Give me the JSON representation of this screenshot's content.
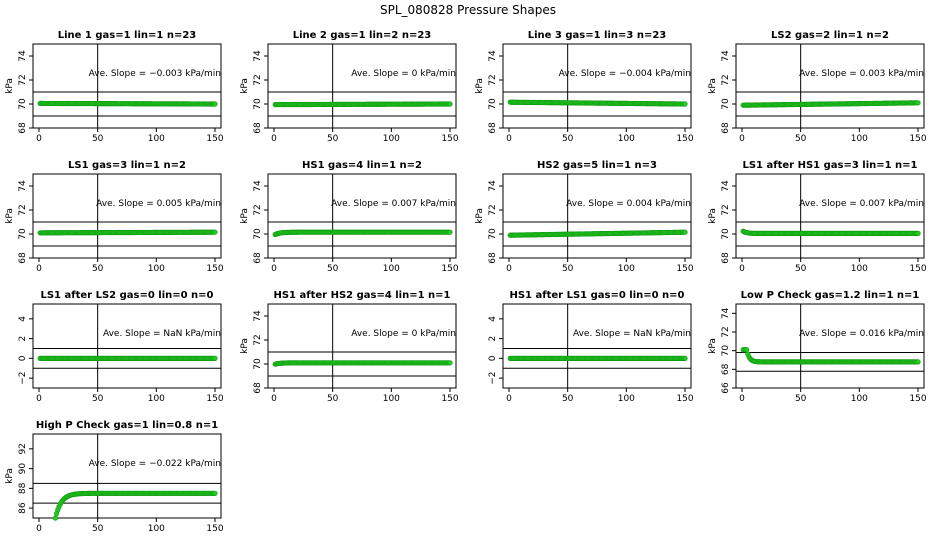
{
  "figure": {
    "title": "SPL_080828  Pressure Shapes"
  },
  "style": {
    "point_color": "#22cc22",
    "point_edge": "#119911",
    "line_color": "#000000"
  },
  "chart_data": [
    {
      "type": "scatter",
      "title": "Line 1 gas=1 lin=1 n=23",
      "ylabel": "kPa",
      "xlim": [
        0,
        150
      ],
      "ylim": [
        68,
        75
      ],
      "yticks": [
        68,
        70,
        72,
        74
      ],
      "xticks": [
        0,
        50,
        100,
        150
      ],
      "hlines": [
        69,
        71
      ],
      "vline": 50,
      "slope_text": "Ave. Slope =  −0.003  kPa/min",
      "series": [
        {
          "y0": 70.05,
          "y_end": 70.0,
          "shape": "flat"
        }
      ]
    },
    {
      "type": "scatter",
      "title": "Line 2 gas=1 lin=2 n=23",
      "ylabel": "kPa",
      "xlim": [
        0,
        150
      ],
      "ylim": [
        68,
        75
      ],
      "yticks": [
        68,
        70,
        72,
        74
      ],
      "xticks": [
        0,
        50,
        100,
        150
      ],
      "hlines": [
        69,
        71
      ],
      "vline": 50,
      "slope_text": "Ave. Slope =  0  kPa/min",
      "series": [
        {
          "y0": 69.95,
          "y_end": 70.0,
          "shape": "flat"
        }
      ]
    },
    {
      "type": "scatter",
      "title": "Line 3 gas=1 lin=3 n=23",
      "ylabel": "kPa",
      "xlim": [
        0,
        150
      ],
      "ylim": [
        68,
        75
      ],
      "yticks": [
        68,
        70,
        72,
        74
      ],
      "xticks": [
        0,
        50,
        100,
        150
      ],
      "hlines": [
        69,
        71
      ],
      "vline": 50,
      "slope_text": "Ave. Slope =  −0.004  kPa/min",
      "series": [
        {
          "y0": 70.15,
          "y_end": 70.0,
          "shape": "flat"
        }
      ]
    },
    {
      "type": "scatter",
      "title": "LS2 gas=2 lin=1 n=2",
      "ylabel": "kPa",
      "xlim": [
        0,
        150
      ],
      "ylim": [
        68,
        75
      ],
      "yticks": [
        68,
        70,
        72,
        74
      ],
      "xticks": [
        0,
        50,
        100,
        150
      ],
      "hlines": [
        69,
        71
      ],
      "vline": 50,
      "slope_text": "Ave. Slope =  0.003  kPa/min",
      "series": [
        {
          "y0": 69.9,
          "y_end": 70.1,
          "shape": "flat"
        }
      ]
    },
    {
      "type": "scatter",
      "title": "LS1 gas=3 lin=1 n=2",
      "ylabel": "kPa",
      "xlim": [
        0,
        150
      ],
      "ylim": [
        68,
        75
      ],
      "yticks": [
        68,
        70,
        72,
        74
      ],
      "xticks": [
        0,
        50,
        100,
        150
      ],
      "hlines": [
        69,
        71
      ],
      "vline": 50,
      "slope_text": "Ave. Slope =  0.005  kPa/min",
      "series": [
        {
          "y0": 70.1,
          "y_end": 70.15,
          "shape": "flat"
        }
      ]
    },
    {
      "type": "scatter",
      "title": "HS1 gas=4 lin=1 n=2",
      "ylabel": "kPa",
      "xlim": [
        0,
        150
      ],
      "ylim": [
        68,
        75
      ],
      "yticks": [
        68,
        70,
        72,
        74
      ],
      "xticks": [
        0,
        50,
        100,
        150
      ],
      "hlines": [
        69,
        71
      ],
      "vline": 50,
      "slope_text": "Ave. Slope =  0.007  kPa/min",
      "series": [
        {
          "y0": 69.9,
          "y_end": 70.15,
          "shape": "rise"
        }
      ]
    },
    {
      "type": "scatter",
      "title": "HS2 gas=5 lin=1 n=3",
      "ylabel": "kPa",
      "xlim": [
        0,
        150
      ],
      "ylim": [
        68,
        75
      ],
      "yticks": [
        68,
        70,
        72,
        74
      ],
      "xticks": [
        0,
        50,
        100,
        150
      ],
      "hlines": [
        69,
        71
      ],
      "vline": 50,
      "slope_text": "Ave. Slope =  0.004  kPa/min",
      "series": [
        {
          "y0": 69.9,
          "y_end": 70.15,
          "shape": "flat"
        }
      ]
    },
    {
      "type": "scatter",
      "title": "LS1 after HS1 gas=3 lin=1 n=1",
      "ylabel": "kPa",
      "xlim": [
        0,
        150
      ],
      "ylim": [
        68,
        75
      ],
      "yticks": [
        68,
        70,
        72,
        74
      ],
      "xticks": [
        0,
        50,
        100,
        150
      ],
      "hlines": [
        69,
        71
      ],
      "vline": 50,
      "slope_text": "Ave. Slope =  0.007  kPa/min",
      "series": [
        {
          "y0": 70.3,
          "y_end": 70.05,
          "shape": "fall"
        }
      ]
    },
    {
      "type": "scatter",
      "title": "LS1 after LS2 gas=0 lin=0 n=0",
      "ylabel": "",
      "xlim": [
        0,
        150
      ],
      "ylim": [
        -3,
        5.5
      ],
      "yticks": [
        -2,
        0,
        2,
        4
      ],
      "xticks": [
        0,
        50,
        100,
        150
      ],
      "hlines": [
        -1,
        1
      ],
      "vline": 50,
      "slope_text": "Ave. Slope =  NaN  kPa/min",
      "series": [
        {
          "y0": 0,
          "y_end": 0,
          "shape": "flat"
        }
      ]
    },
    {
      "type": "scatter",
      "title": "HS1 after HS2 gas=4 lin=1 n=1",
      "ylabel": "kPa",
      "xlim": [
        0,
        150
      ],
      "ylim": [
        68,
        75
      ],
      "yticks": [
        68,
        70,
        72,
        74
      ],
      "xticks": [
        0,
        50,
        100,
        150
      ],
      "hlines": [
        69,
        71
      ],
      "vline": 50,
      "slope_text": "Ave. Slope =  0  kPa/min",
      "series": [
        {
          "y0": 69.95,
          "y_end": 70.1,
          "shape": "rise"
        }
      ]
    },
    {
      "type": "scatter",
      "title": "HS1 after LS1 gas=0 lin=0 n=0",
      "ylabel": "",
      "xlim": [
        0,
        150
      ],
      "ylim": [
        -3,
        5.5
      ],
      "yticks": [
        -2,
        0,
        2,
        4
      ],
      "xticks": [
        0,
        50,
        100,
        150
      ],
      "hlines": [
        -1,
        1
      ],
      "vline": 50,
      "slope_text": "Ave. Slope =  NaN  kPa/min",
      "series": [
        {
          "y0": 0,
          "y_end": 0,
          "shape": "flat"
        }
      ]
    },
    {
      "type": "scatter",
      "title": "Low P Check gas=1.2 lin=1 n=1",
      "ylabel": "kPa",
      "xlim": [
        0,
        150
      ],
      "ylim": [
        66,
        75
      ],
      "yticks": [
        66,
        68,
        70,
        72,
        74
      ],
      "xticks": [
        0,
        50,
        100,
        150
      ],
      "hlines": [
        67.8,
        69.8
      ],
      "vline": 50,
      "slope_text": "Ave. Slope =  0.016  kPa/min",
      "series": [
        {
          "y0": 70.1,
          "y_end": 68.8,
          "shape": "drop"
        }
      ]
    },
    {
      "type": "scatter",
      "title": "High P Check gas=1 lin=0.8 n=1",
      "ylabel": "kPa",
      "xlim": [
        0,
        150
      ],
      "ylim": [
        85,
        93.5
      ],
      "yticks": [
        86,
        88,
        90,
        92
      ],
      "xticks": [
        0,
        50,
        100,
        150
      ],
      "hlines": [
        86.5,
        88.5
      ],
      "vline": 50,
      "slope_text": "Ave. Slope =  −0.022  kPa/min",
      "series": [
        {
          "y0": 85.0,
          "y_end": 87.5,
          "shape": "recover"
        }
      ]
    }
  ]
}
